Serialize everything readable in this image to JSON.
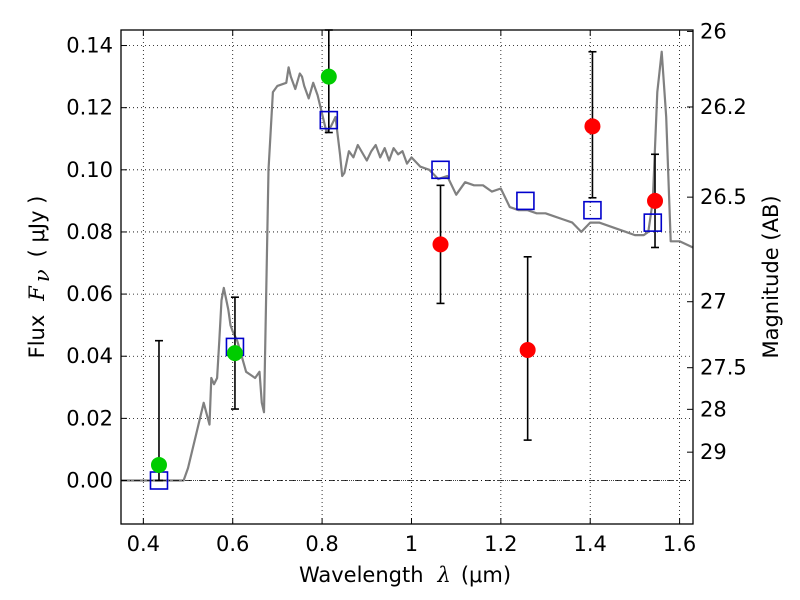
{
  "chart_data": {
    "type": "scatter",
    "xlabel": {
      "prefix": "Wavelength",
      "symbol": "λ",
      "unit": "(μm)"
    },
    "ylabel": {
      "prefix": "Flux",
      "symbol": "F",
      "subscript": "ν",
      "unit": "( μJy )"
    },
    "ylabel_right": "Magnitude (AB)",
    "xlim": [
      0.35,
      1.63
    ],
    "ylim": [
      -0.014,
      0.145
    ],
    "grid": true,
    "x_ticks": [
      {
        "value": 0.4,
        "label": "0.4"
      },
      {
        "value": 0.6,
        "label": "0.6"
      },
      {
        "value": 0.8,
        "label": "0.8"
      },
      {
        "value": 1.0,
        "label": "1"
      },
      {
        "value": 1.2,
        "label": "1.2"
      },
      {
        "value": 1.4,
        "label": "1.4"
      },
      {
        "value": 1.6,
        "label": "1.6"
      }
    ],
    "y_ticks": [
      {
        "value": 0.0,
        "label": "0.00"
      },
      {
        "value": 0.02,
        "label": "0.02"
      },
      {
        "value": 0.04,
        "label": "0.04"
      },
      {
        "value": 0.06,
        "label": "0.06"
      },
      {
        "value": 0.08,
        "label": "0.08"
      },
      {
        "value": 0.1,
        "label": "0.10"
      },
      {
        "value": 0.12,
        "label": "0.12"
      },
      {
        "value": 0.14,
        "label": "0.14"
      }
    ],
    "right_ticks": [
      {
        "value": 26.0,
        "label": "26"
      },
      {
        "value": 26.2,
        "label": "26.2"
      },
      {
        "value": 26.5,
        "label": "26.5"
      },
      {
        "value": 27.0,
        "label": "27"
      },
      {
        "value": 27.5,
        "label": "27.5"
      },
      {
        "value": 28.0,
        "label": "28"
      },
      {
        "value": 29.0,
        "label": "29"
      }
    ],
    "series": [
      {
        "kind": "line",
        "color": "#808080",
        "x": [
          0.35,
          0.49,
          0.5,
          0.52,
          0.535,
          0.548,
          0.552,
          0.558,
          0.565,
          0.57,
          0.575,
          0.58,
          0.59,
          0.595,
          0.6,
          0.61,
          0.62,
          0.63,
          0.64,
          0.65,
          0.66,
          0.665,
          0.67,
          0.68,
          0.69,
          0.7,
          0.72,
          0.725,
          0.73,
          0.74,
          0.75,
          0.755,
          0.76,
          0.77,
          0.78,
          0.79,
          0.8,
          0.81,
          0.82,
          0.83,
          0.84,
          0.845,
          0.85,
          0.86,
          0.87,
          0.88,
          0.9,
          0.91,
          0.92,
          0.93,
          0.94,
          0.95,
          0.96,
          0.97,
          0.98,
          0.99,
          1.0,
          1.02,
          1.04,
          1.06,
          1.08,
          1.1,
          1.12,
          1.14,
          1.16,
          1.18,
          1.2,
          1.22,
          1.24,
          1.26,
          1.28,
          1.3,
          1.32,
          1.34,
          1.36,
          1.38,
          1.4,
          1.42,
          1.44,
          1.46,
          1.48,
          1.5,
          1.52,
          1.53,
          1.54,
          1.55,
          1.56,
          1.57,
          1.58,
          1.6,
          1.63
        ],
        "y": [
          0.0,
          0.0,
          0.004,
          0.016,
          0.025,
          0.018,
          0.033,
          0.031,
          0.033,
          0.045,
          0.058,
          0.062,
          0.055,
          0.05,
          0.048,
          0.045,
          0.04,
          0.035,
          0.034,
          0.033,
          0.035,
          0.025,
          0.022,
          0.1,
          0.125,
          0.127,
          0.128,
          0.133,
          0.13,
          0.126,
          0.131,
          0.13,
          0.127,
          0.123,
          0.128,
          0.124,
          0.118,
          0.112,
          0.114,
          0.117,
          0.105,
          0.098,
          0.099,
          0.106,
          0.104,
          0.108,
          0.103,
          0.106,
          0.108,
          0.104,
          0.107,
          0.103,
          0.107,
          0.105,
          0.106,
          0.102,
          0.104,
          0.101,
          0.1,
          0.097,
          0.098,
          0.092,
          0.096,
          0.095,
          0.095,
          0.093,
          0.094,
          0.088,
          0.087,
          0.087,
          0.086,
          0.086,
          0.085,
          0.084,
          0.083,
          0.08,
          0.083,
          0.083,
          0.082,
          0.081,
          0.08,
          0.079,
          0.079,
          0.08,
          0.09,
          0.125,
          0.138,
          0.117,
          0.077,
          0.077,
          0.075
        ]
      },
      {
        "kind": "open-squares",
        "color": "#0000cc",
        "x": [
          0.435,
          0.605,
          0.815,
          1.065,
          1.255,
          1.405,
          1.54
        ],
        "y": [
          0.0,
          0.043,
          0.116,
          0.1,
          0.09,
          0.087,
          0.083
        ]
      },
      {
        "kind": "points-with-errorbars",
        "color": "#00cc00",
        "x": [
          0.435,
          0.605,
          0.815
        ],
        "y": [
          0.005,
          0.041,
          0.13
        ],
        "yerr_low": [
          0.0,
          0.023,
          0.112
        ],
        "yerr_high": [
          0.045,
          0.059,
          0.145
        ]
      },
      {
        "kind": "points-with-errorbars",
        "color": "#ff0000",
        "x": [
          1.065,
          1.26,
          1.405,
          1.545
        ],
        "y": [
          0.076,
          0.042,
          0.114,
          0.09
        ],
        "yerr_low": [
          0.057,
          0.013,
          0.091,
          0.075
        ],
        "yerr_high": [
          0.095,
          0.072,
          0.138,
          0.105
        ]
      }
    ],
    "zero_line": 0.0
  }
}
